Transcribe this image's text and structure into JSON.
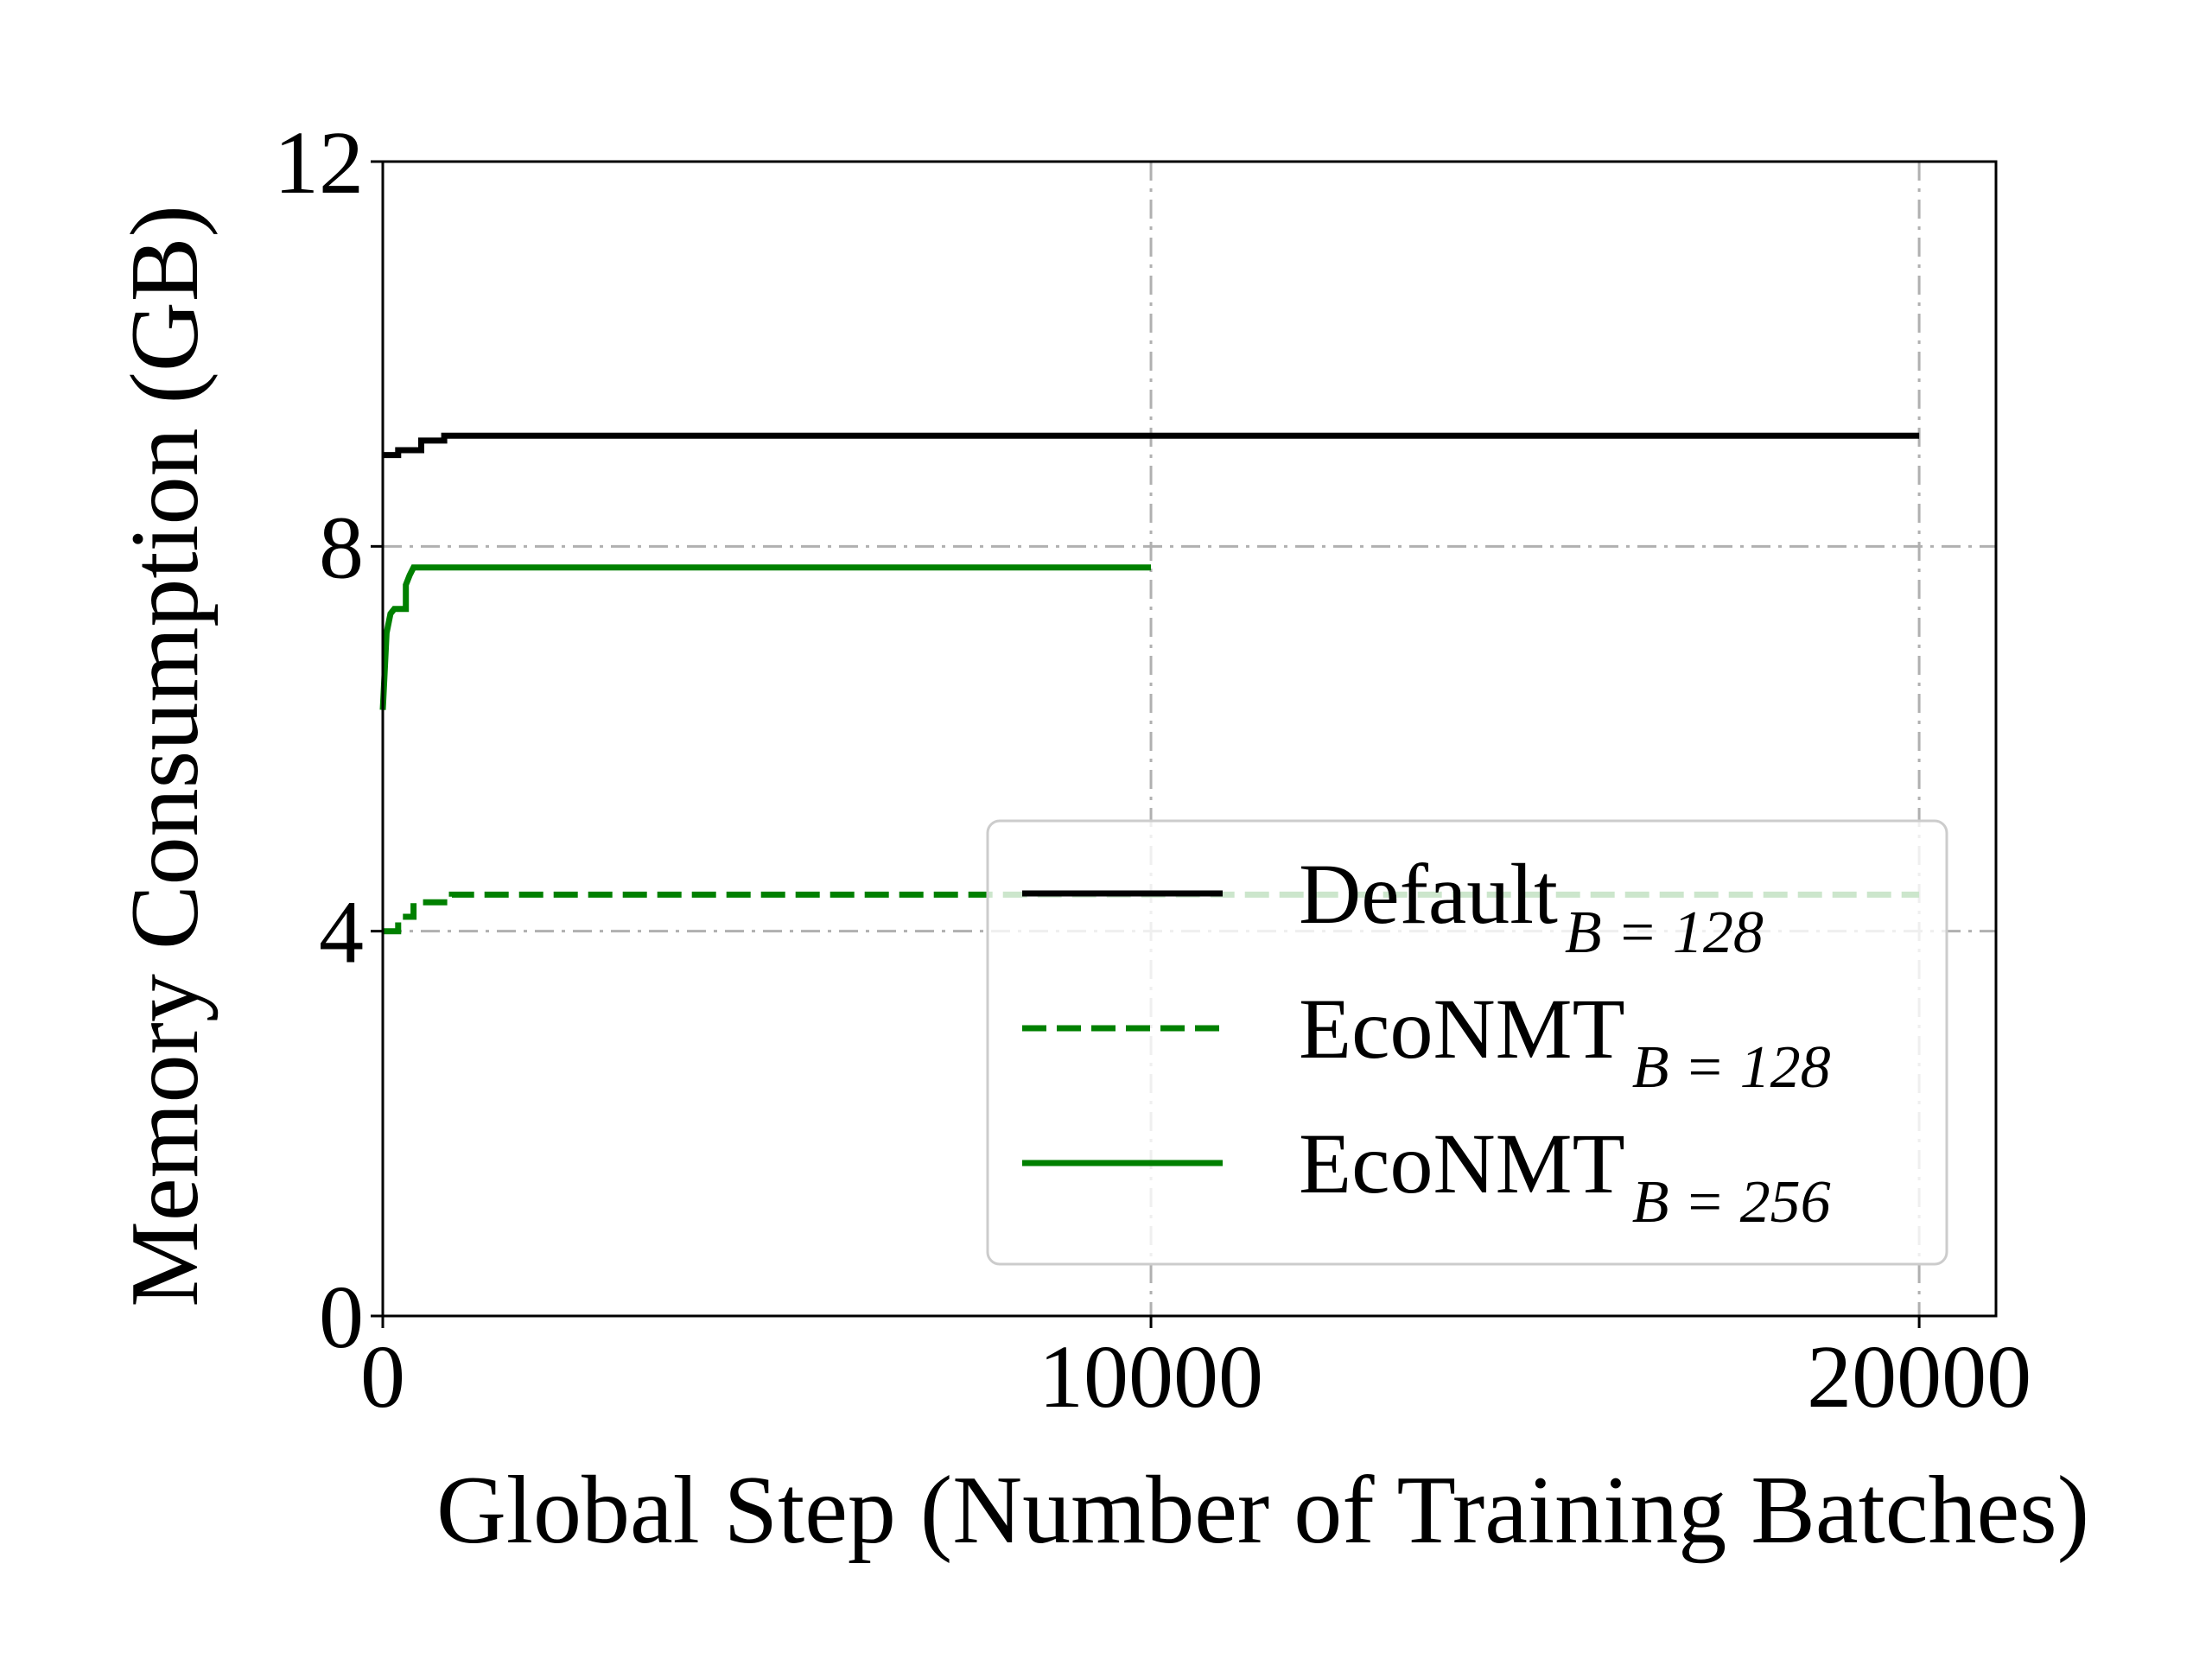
{
  "chart_data": {
    "type": "line",
    "title": "",
    "xlabel": "Global Step (Number of Training Batches)",
    "ylabel": "Memory Consumption (GB)",
    "xlim": [
      0,
      21000
    ],
    "ylim": [
      0,
      12
    ],
    "xticks": [
      0,
      10000,
      20000
    ],
    "yticks": [
      0,
      4,
      8,
      12
    ],
    "x_tick_labels": [
      "0",
      "10000",
      "20000"
    ],
    "y_tick_labels": [
      "0",
      "4",
      "8",
      "12"
    ],
    "grid": true,
    "grid_style": "dash-dot",
    "legend_position": "lower right",
    "series": [
      {
        "key": "default_b128",
        "name": "Default",
        "subscript": "B = 128",
        "color": "#000000",
        "style": "solid",
        "x": [
          0,
          200,
          200,
          500,
          500,
          800,
          800,
          1000,
          20000
        ],
        "y": [
          8.95,
          8.95,
          9.0,
          9.0,
          9.1,
          9.1,
          9.15,
          9.15,
          9.15
        ]
      },
      {
        "key": "econmt_b128",
        "name": "EcoNMT",
        "subscript": "B = 128",
        "color": "#008000",
        "style": "dashed",
        "x": [
          0,
          200,
          200,
          400,
          400,
          800,
          800,
          900,
          900,
          20000
        ],
        "y": [
          4.0,
          4.0,
          4.15,
          4.15,
          4.3,
          4.3,
          4.35,
          4.35,
          4.38,
          4.38
        ]
      },
      {
        "key": "econmt_b256",
        "name": "EcoNMT",
        "subscript": "B = 256",
        "color": "#008000",
        "style": "solid",
        "x": [
          0,
          50,
          100,
          150,
          300,
          300,
          350,
          400,
          500,
          10000
        ],
        "y": [
          6.3,
          7.1,
          7.3,
          7.35,
          7.35,
          7.6,
          7.7,
          7.78,
          7.78,
          7.78
        ]
      }
    ]
  }
}
